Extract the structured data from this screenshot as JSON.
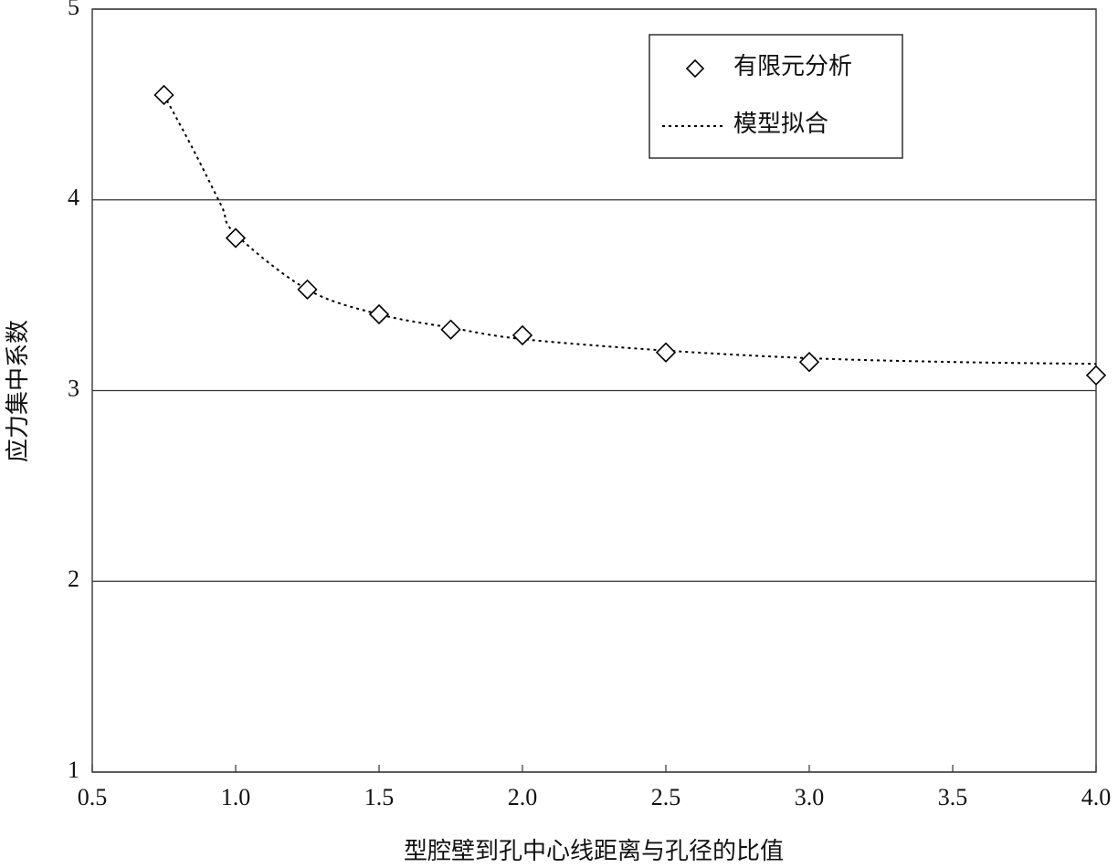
{
  "chart_data": {
    "type": "scatter",
    "x_label": "型腔壁到孔中心线距离与孔径的比值",
    "y_label": "应力集中系数",
    "series": [
      {
        "name": "有限元分析",
        "type": "scatter",
        "marker": "diamond",
        "color": "#000000",
        "x": [
          0.75,
          1.0,
          1.25,
          1.5,
          1.75,
          2.0,
          2.5,
          3.0,
          4.0
        ],
        "values": [
          4.55,
          3.8,
          3.53,
          3.4,
          3.32,
          3.29,
          3.2,
          3.15,
          3.08
        ]
      },
      {
        "name": "模型拟合",
        "type": "line",
        "dash": "dotted",
        "color": "#000000",
        "x": [
          0.75,
          0.85,
          0.95,
          1.0,
          1.25,
          1.5,
          1.75,
          2.0,
          2.5,
          3.0,
          3.5,
          4.0
        ],
        "values": [
          4.55,
          4.27,
          3.97,
          3.82,
          3.53,
          3.4,
          3.33,
          3.27,
          3.21,
          3.17,
          3.15,
          3.14
        ]
      }
    ],
    "xlim": [
      0.5,
      4.0
    ],
    "xticks": [
      0.5,
      {
        "value": 1,
        "label": "1.0"
      },
      1.5,
      {
        "value": 2,
        "label": "2.0"
      },
      2.5,
      {
        "value": 3,
        "label": "3.0"
      },
      3.5,
      {
        "value": 4,
        "label": "4.0"
      }
    ],
    "ylim": [
      1,
      5
    ],
    "yticks": [
      1,
      2,
      3,
      4,
      5
    ],
    "grid": true,
    "legend": "upper right"
  }
}
